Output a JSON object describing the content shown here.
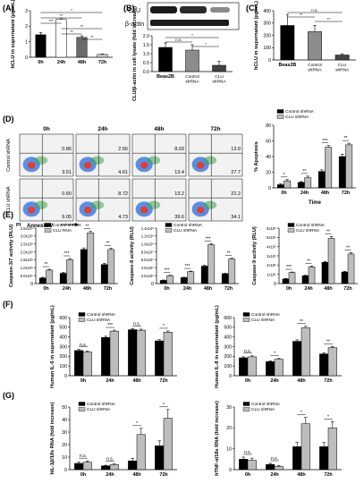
{
  "colors": {
    "dark": "#000000",
    "mid": "#555555",
    "light": "#bdbdbd",
    "flow_bg": "#f2f2f2"
  },
  "panel_labels": {
    "A": "(A)",
    "B": "(B)",
    "C": "(C)",
    "D": "(D)",
    "E": "(E)",
    "F": "(F)",
    "G": "(G)"
  },
  "blot": {
    "clu": "CLU",
    "actin": "β-actin"
  },
  "flow": {
    "times": [
      "0h",
      "24h",
      "48h",
      "72h"
    ],
    "rows": [
      "Control shRNA",
      "CLU shRNA"
    ],
    "pi_label": "PI",
    "annexin_label": "Annexin V",
    "quadrants": [
      [
        [
          "0.86",
          "3.51"
        ],
        [
          "2.56",
          "4.61"
        ],
        [
          "8.03",
          "13.4"
        ],
        [
          "13.9",
          "27.7"
        ]
      ],
      [
        [
          "0.60",
          "9.05"
        ],
        [
          "8.72",
          "4.73"
        ],
        [
          "13.2",
          "39.6"
        ],
        [
          "22.2",
          "34.1"
        ]
      ]
    ]
  },
  "chart_data": [
    {
      "id": "A",
      "type": "bar",
      "categories": [
        "0h",
        "24h",
        "48h",
        "72h"
      ],
      "series": [
        {
          "values": [
            1.45,
            2.45,
            1.28,
            0.18
          ],
          "errors": [
            0.15,
            0.08,
            0.1,
            0.03
          ]
        }
      ],
      "ylabel": "hCLU in supernatant (pg/mL)",
      "ylim": [
        0,
        3
      ],
      "yticks": [
        "0",
        "1",
        "2",
        "3"
      ],
      "significance": [
        "*",
        "**",
        "***",
        "**",
        "**",
        "**"
      ]
    },
    {
      "id": "B",
      "type": "bar",
      "categories": [
        "Beas2B",
        "Control shRNA",
        "CLU shRNA"
      ],
      "series": [
        {
          "values": [
            1.35,
            1.2,
            0.35
          ],
          "errors": [
            0.25,
            0.3,
            0.22
          ]
        }
      ],
      "ylabel": "CLU/β-actin in cell lysate (fold increase)",
      "ylim": [
        0,
        2.0
      ],
      "yticks": [
        "0.0",
        "0.5",
        "1.0",
        "1.5",
        "2.0"
      ],
      "significance": [
        "n.s.",
        "*",
        "*"
      ]
    },
    {
      "id": "C",
      "type": "bar",
      "categories": [
        "Beas2B",
        "Control shRNA",
        "CLU shRNA"
      ],
      "series": [
        {
          "values": [
            280,
            230,
            40
          ],
          "errors": [
            90,
            50,
            10
          ]
        }
      ],
      "ylabel": "hCLU in supernatant (pg/mL)",
      "ylim": [
        0,
        400
      ],
      "yticks": [
        "0",
        "100",
        "200",
        "300",
        "400"
      ],
      "significance": [
        "**",
        "n.s.",
        "**"
      ]
    },
    {
      "id": "D",
      "type": "bar",
      "categories": [
        "0h",
        "24h",
        "48h",
        "72h"
      ],
      "series": [
        {
          "name": "Control shRNA",
          "values": [
            4,
            7,
            21,
            40
          ],
          "errors": [
            1,
            1,
            2,
            3
          ]
        },
        {
          "name": "CLU shRNA",
          "values": [
            9,
            13,
            52,
            55
          ],
          "errors": [
            1.5,
            2,
            2,
            2
          ]
        }
      ],
      "ylabel": "% Apoptosis",
      "xlabel": "Time",
      "ylim": [
        0,
        80
      ],
      "yticks": [
        "0",
        "20",
        "40",
        "60",
        "80"
      ],
      "significance": [
        "*",
        "**",
        "***",
        "**"
      ]
    },
    {
      "id": "E1",
      "type": "bar",
      "categories": [
        "0h",
        "24h",
        "48h",
        "72h"
      ],
      "series": [
        {
          "name": "Control shRNA",
          "values": [
            0.35,
            0.65,
            2.15,
            1.2
          ],
          "errors": [
            0.05,
            0.05,
            0.1,
            0.08
          ]
        },
        {
          "name": "CLU RNA",
          "values": [
            0.85,
            1.5,
            3.2,
            2.15
          ],
          "errors": [
            0.05,
            0.08,
            0.1,
            0.08
          ]
        }
      ],
      "ylabel": "Caspase-3/7 activity (RLU)",
      "ylim": [
        0,
        3.5
      ],
      "yticks": [
        "0",
        "5.0x10⁵",
        "1.0x10⁶",
        "1.5x10⁶",
        "2.0x10⁶",
        "2.5x10⁶",
        "3.0x10⁶",
        "3.5x10⁶"
      ],
      "significance": [
        "**",
        "***",
        "**",
        "**"
      ]
    },
    {
      "id": "E2",
      "type": "bar",
      "categories": [
        "0h",
        "24h",
        "48h",
        "72h"
      ],
      "series": [
        {
          "name": "Control shRNA",
          "values": [
            0.8,
            1.5,
            4.4,
            2.5
          ],
          "errors": [
            0.1,
            0.1,
            0.2,
            0.1
          ]
        },
        {
          "name": "CLU shRNA",
          "values": [
            2.0,
            3.0,
            9.8,
            6.2
          ],
          "errors": [
            0.1,
            0.15,
            0.3,
            0.2
          ]
        }
      ],
      "ylabel": "Caspase-8 activity (RLU)",
      "ylim": [
        0,
        14
      ],
      "yticks": [
        "0",
        "2.0x10⁵",
        "4.0x10⁵",
        "6.0x10⁵",
        "8.0x10⁵",
        "1.0x10⁶",
        "1.2x10⁶",
        "1.4x10⁶"
      ],
      "significance": [
        "***",
        "***",
        "***",
        "**"
      ]
    },
    {
      "id": "E3",
      "type": "bar",
      "categories": [
        "0h",
        "24h",
        "48h",
        "72h"
      ],
      "series": [
        {
          "name": "Control shRNA",
          "values": [
            0.5,
            0.85,
            2.3,
            1.25
          ],
          "errors": [
            0.05,
            0.05,
            0.1,
            0.08
          ]
        },
        {
          "name": "CLU shRNA",
          "values": [
            1.2,
            1.8,
            4.9,
            3.2
          ],
          "errors": [
            0.05,
            0.1,
            0.2,
            0.15
          ]
        }
      ],
      "ylabel": "Caspase-9 activity (RLU)",
      "ylim": [
        0,
        6
      ],
      "yticks": [
        "0",
        "1x10⁵",
        "2x10⁵",
        "3x10⁵",
        "4x10⁵",
        "5x10⁵",
        "6x10⁵"
      ],
      "significance": [
        "***",
        "**",
        "**",
        "**"
      ]
    },
    {
      "id": "F1",
      "type": "bar",
      "categories": [
        "0h",
        "24h",
        "48h",
        "72h"
      ],
      "series": [
        {
          "name": "Control shRNA",
          "values": [
            260,
            395,
            475,
            360
          ],
          "errors": [
            10,
            12,
            10,
            12
          ]
        },
        {
          "name": "CLU shRNA",
          "values": [
            245,
            460,
            470,
            450
          ],
          "errors": [
            10,
            10,
            10,
            12
          ]
        }
      ],
      "ylabel": "Human IL-6 in supernatant (pg/mL)",
      "ylim": [
        0,
        600
      ],
      "yticks": [
        "0",
        "100",
        "200",
        "300",
        "400",
        "500",
        "600"
      ],
      "significance": [
        "n.s.",
        "***",
        "n.s.",
        "*"
      ]
    },
    {
      "id": "F2",
      "type": "bar",
      "categories": [
        "0h",
        "24h",
        "48h",
        "72h"
      ],
      "series": [
        {
          "name": "Control shRNA",
          "values": [
            185,
            145,
            355,
            225
          ],
          "errors": [
            10,
            8,
            15,
            10
          ]
        },
        {
          "name": "CLU shRNA",
          "values": [
            195,
            170,
            495,
            290
          ],
          "errors": [
            10,
            8,
            15,
            12
          ]
        }
      ],
      "ylabel": "Human IL-8 in supernatant (pg/mL)",
      "ylim": [
        0,
        600
      ],
      "yticks": [
        "0",
        "100",
        "200",
        "300",
        "400",
        "500",
        "600"
      ],
      "significance": [
        "n.s.",
        "*",
        "**",
        "**"
      ]
    },
    {
      "id": "G1",
      "type": "bar",
      "categories": [
        "0h",
        "24h",
        "48h",
        "72h"
      ],
      "series": [
        {
          "name": "Control shRNA",
          "values": [
            5,
            3,
            7,
            19
          ],
          "errors": [
            1,
            0.5,
            2,
            4
          ]
        },
        {
          "name": "CLU shRNA",
          "values": [
            6,
            4,
            28,
            41
          ],
          "errors": [
            1,
            0.5,
            5,
            7
          ]
        }
      ],
      "ylabel": "hIL-1β/18s RNA (fold increase)",
      "ylim": [
        0,
        50
      ],
      "yticks": [
        "0",
        "10",
        "20",
        "30",
        "40",
        "50"
      ],
      "significance": [
        "n.s.",
        "n.s.",
        "*",
        "*"
      ]
    },
    {
      "id": "G2",
      "type": "bar",
      "categories": [
        "0h",
        "24h",
        "48h",
        "72h"
      ],
      "series": [
        {
          "name": "Control shRNA",
          "values": [
            5,
            2.5,
            11,
            11
          ],
          "errors": [
            1,
            0.5,
            2,
            2
          ]
        },
        {
          "name": "CLU shRNA",
          "values": [
            4.5,
            1.5,
            22,
            20
          ],
          "errors": [
            1,
            0.5,
            3,
            3
          ]
        }
      ],
      "ylabel": "hTNF-α/18s RNA (fold increase)",
      "ylim": [
        0,
        30
      ],
      "yticks": [
        "0",
        "10",
        "20",
        "30"
      ],
      "significance": [
        "n.s.",
        "n.s.",
        "*",
        "*"
      ]
    }
  ]
}
